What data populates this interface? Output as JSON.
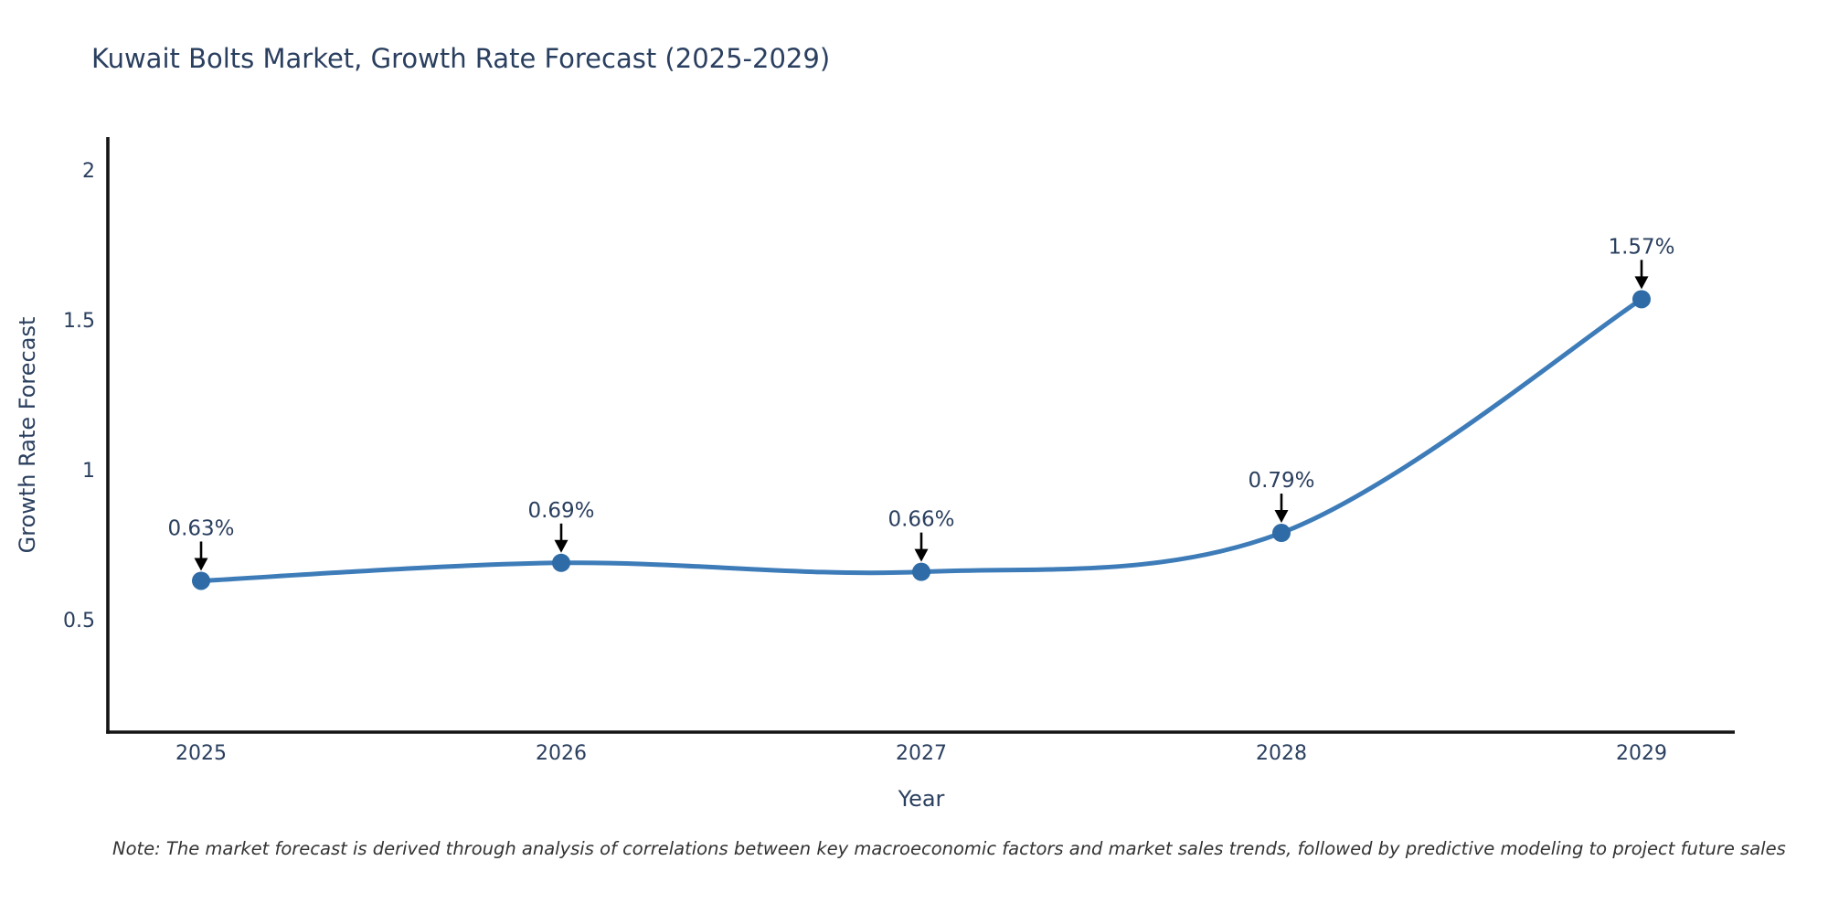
{
  "chart_data": {
    "type": "line",
    "title": "Kuwait Bolts Market, Growth Rate Forecast (2025-2029)",
    "xlabel": "Year",
    "ylabel": "Growth Rate Forecast",
    "categories": [
      "2025",
      "2026",
      "2027",
      "2028",
      "2029"
    ],
    "series": [
      {
        "name": "Growth Rate Forecast",
        "values": [
          0.63,
          0.69,
          0.66,
          0.79,
          1.57
        ]
      }
    ],
    "point_labels": [
      "0.63%",
      "0.69%",
      "0.66%",
      "0.79%",
      "1.57%"
    ],
    "ylim": [
      0.125,
      2.105
    ],
    "y_ticks": [
      0.5,
      1,
      1.5,
      2
    ],
    "grid": false,
    "legend": false,
    "line_shape": "spline",
    "note": "Note: The market forecast is derived through analysis of correlations between key macroeconomic factors and market sales trends, followed by predictive modeling to project future sales",
    "colors": {
      "line": "#3d7cb8",
      "marker": "#2f6ba6",
      "axis": "#141414",
      "text": "#2a3f5f",
      "arrow": "#000000",
      "note_text": "#333333"
    }
  }
}
